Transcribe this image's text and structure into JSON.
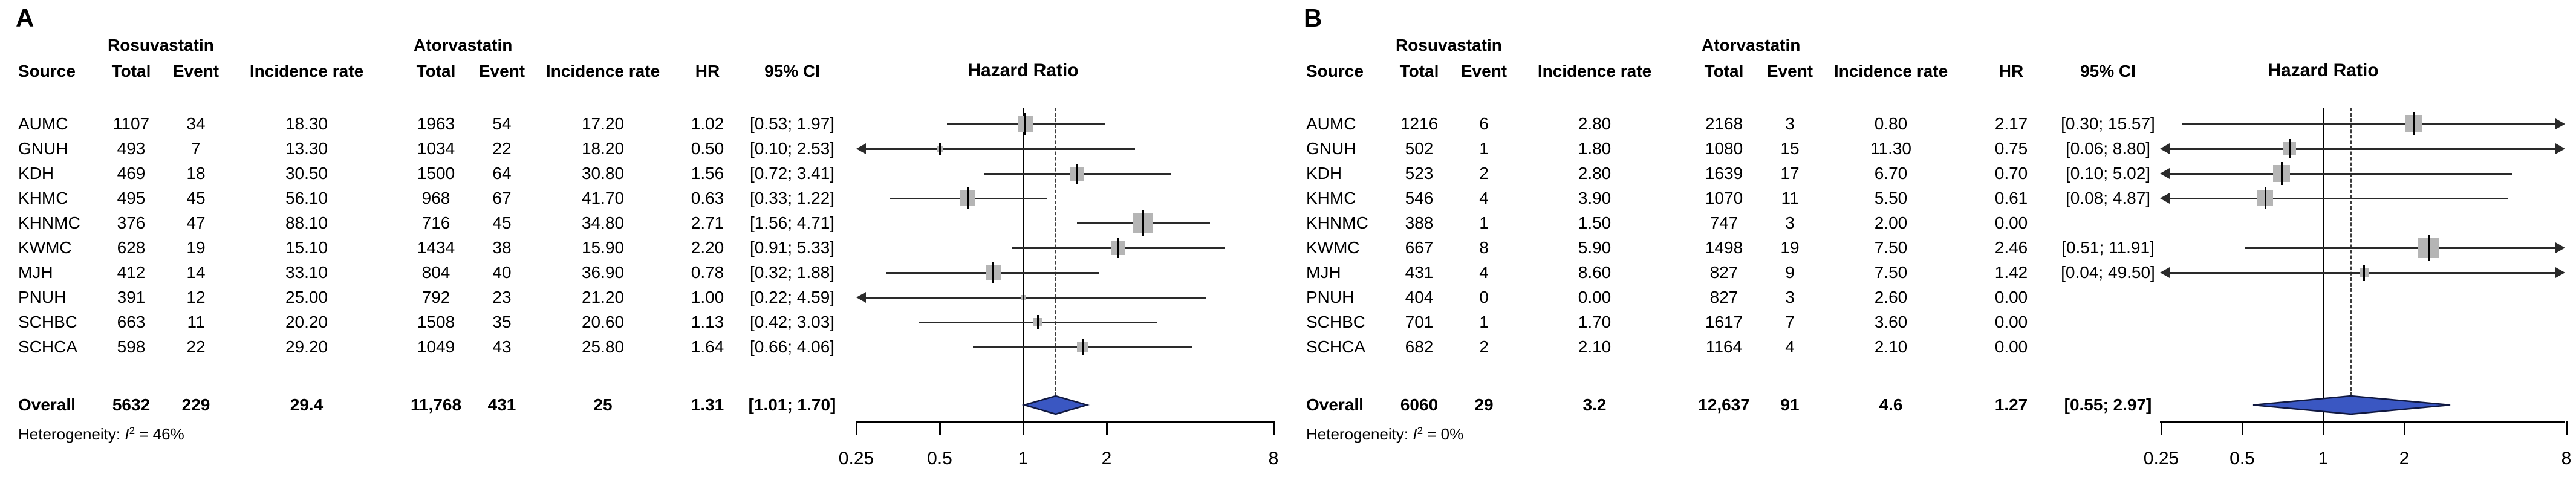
{
  "figure_colors": {
    "diamond_fill": "#3a57c2",
    "diamond_stroke": "#101840",
    "square": "#b5b5b5",
    "ci_line": "#2a2a2a",
    "axis": "#000000",
    "dashed_line": "#3c3c3c",
    "text": "#000000"
  },
  "panels": [
    {
      "label": "A",
      "group1": "Rosuvastatin",
      "group2": "Atorvastatin",
      "col_source": "Source",
      "col_total": "Total",
      "col_event": "Event",
      "col_rate": "Incidence rate",
      "col_hr": "HR",
      "col_ci": "95% CI",
      "plot_title": "Hazard Ratio",
      "overall_label": "Overall",
      "het_prefix": "Heterogeneity: ",
      "het_symbol": "I",
      "het_sup": "2",
      "het_rest": " = 46%",
      "axis_ticks": [
        "0.25",
        "0.5",
        "1",
        "2",
        "8"
      ],
      "studies": [
        {
          "source": "AUMC",
          "t1": "1107",
          "e1": "34",
          "r1": "18.30",
          "t2": "1963",
          "e2": "54",
          "r2": "17.20",
          "hr": "1.02",
          "ci": "[0.53; 1.97]",
          "hr_v": 1.02,
          "lo": 0.53,
          "hi": 1.97,
          "w": 26
        },
        {
          "source": "GNUH",
          "t1": "493",
          "e1": "7",
          "r1": "13.30",
          "t2": "1034",
          "e2": "22",
          "r2": "18.20",
          "hr": "0.50",
          "ci": "[0.10; 2.53]",
          "hr_v": 0.5,
          "lo": 0.1,
          "hi": 2.53,
          "w": 9
        },
        {
          "source": "KDH",
          "t1": "469",
          "e1": "18",
          "r1": "30.50",
          "t2": "1500",
          "e2": "64",
          "r2": "30.80",
          "hr": "1.56",
          "ci": "[0.72; 3.41]",
          "hr_v": 1.56,
          "lo": 0.72,
          "hi": 3.41,
          "w": 23
        },
        {
          "source": "KHMC",
          "t1": "495",
          "e1": "45",
          "r1": "56.10",
          "t2": "968",
          "e2": "67",
          "r2": "41.70",
          "hr": "0.63",
          "ci": "[0.33; 1.22]",
          "hr_v": 0.63,
          "lo": 0.33,
          "hi": 1.22,
          "w": 26
        },
        {
          "source": "KHNMC",
          "t1": "376",
          "e1": "47",
          "r1": "88.10",
          "t2": "716",
          "e2": "45",
          "r2": "34.80",
          "hr": "2.71",
          "ci": "[1.56; 4.71]",
          "hr_v": 2.71,
          "lo": 1.56,
          "hi": 4.71,
          "w": 34
        },
        {
          "source": "KWMC",
          "t1": "628",
          "e1": "19",
          "r1": "15.10",
          "t2": "1434",
          "e2": "38",
          "r2": "15.90",
          "hr": "2.20",
          "ci": "[0.91; 5.33]",
          "hr_v": 2.2,
          "lo": 0.91,
          "hi": 5.33,
          "w": 24
        },
        {
          "source": "MJH",
          "t1": "412",
          "e1": "14",
          "r1": "33.10",
          "t2": "804",
          "e2": "40",
          "r2": "36.90",
          "hr": "0.78",
          "ci": "[0.32; 1.88]",
          "hr_v": 0.78,
          "lo": 0.32,
          "hi": 1.88,
          "w": 24
        },
        {
          "source": "PNUH",
          "t1": "391",
          "e1": "12",
          "r1": "25.00",
          "t2": "792",
          "e2": "23",
          "r2": "21.20",
          "hr": "1.00",
          "ci": "[0.22; 4.59]",
          "hr_v": 1.0,
          "lo": 0.22,
          "hi": 4.59,
          "w": 9
        },
        {
          "source": "SCHBC",
          "t1": "663",
          "e1": "11",
          "r1": "20.20",
          "t2": "1508",
          "e2": "35",
          "r2": "20.60",
          "hr": "1.13",
          "ci": "[0.42; 3.03]",
          "hr_v": 1.13,
          "lo": 0.42,
          "hi": 3.03,
          "w": 14
        },
        {
          "source": "SCHCA",
          "t1": "598",
          "e1": "22",
          "r1": "29.20",
          "t2": "1049",
          "e2": "43",
          "r2": "25.80",
          "hr": "1.64",
          "ci": "[0.66; 4.06]",
          "hr_v": 1.64,
          "lo": 0.66,
          "hi": 4.06,
          "w": 18
        }
      ],
      "overall": {
        "t1": "5632",
        "e1": "229",
        "r1": "29.4",
        "t2": "11,768",
        "e2": "431",
        "r2": "25",
        "hr": "1.31",
        "ci": "[1.01; 1.70]",
        "hr_v": 1.31,
        "lo": 1.01,
        "hi": 1.7
      }
    },
    {
      "label": "B",
      "group1": "Rosuvastatin",
      "group2": "Atorvastatin",
      "col_source": "Source",
      "col_total": "Total",
      "col_event": "Event",
      "col_rate": "Incidence rate",
      "col_hr": "HR",
      "col_ci": "95% CI",
      "plot_title": "Hazard Ratio",
      "overall_label": "Overall",
      "het_prefix": "Heterogeneity: ",
      "het_symbol": "I",
      "het_sup": "2",
      "het_rest": " = 0%",
      "axis_ticks": [
        "0.25",
        "0.5",
        "1",
        "2",
        "8"
      ],
      "studies": [
        {
          "source": "AUMC",
          "t1": "1216",
          "e1": "6",
          "r1": "2.80",
          "t2": "2168",
          "e2": "3",
          "r2": "0.80",
          "hr": "2.17",
          "ci": "[0.30; 15.57]",
          "hr_v": 2.17,
          "lo": 0.3,
          "hi": 15.57,
          "w": 28
        },
        {
          "source": "GNUH",
          "t1": "502",
          "e1": "1",
          "r1": "1.80",
          "t2": "1080",
          "e2": "15",
          "r2": "11.30",
          "hr": "0.75",
          "ci": "[0.06; 8.80]",
          "hr_v": 0.75,
          "lo": 0.06,
          "hi": 8.8,
          "w": 22
        },
        {
          "source": "KDH",
          "t1": "523",
          "e1": "2",
          "r1": "2.80",
          "t2": "1639",
          "e2": "17",
          "r2": "6.70",
          "hr": "0.70",
          "ci": "[0.10; 5.02]",
          "hr_v": 0.7,
          "lo": 0.1,
          "hi": 5.02,
          "w": 28
        },
        {
          "source": "KHMC",
          "t1": "546",
          "e1": "4",
          "r1": "3.90",
          "t2": "1070",
          "e2": "11",
          "r2": "5.50",
          "hr": "0.61",
          "ci": "[0.08; 4.87]",
          "hr_v": 0.61,
          "lo": 0.08,
          "hi": 4.87,
          "w": 26
        },
        {
          "source": "KHNMC",
          "t1": "388",
          "e1": "1",
          "r1": "1.50",
          "t2": "747",
          "e2": "3",
          "r2": "2.00",
          "hr": "0.00",
          "ci": "",
          "hr_v": null,
          "lo": null,
          "hi": null,
          "w": 0
        },
        {
          "source": "KWMC",
          "t1": "667",
          "e1": "8",
          "r1": "5.90",
          "t2": "1498",
          "e2": "19",
          "r2": "7.50",
          "hr": "2.46",
          "ci": "[0.51; 11.91]",
          "hr_v": 2.46,
          "lo": 0.51,
          "hi": 11.91,
          "w": 34
        },
        {
          "source": "MJH",
          "t1": "431",
          "e1": "4",
          "r1": "8.60",
          "t2": "827",
          "e2": "9",
          "r2": "7.50",
          "hr": "1.42",
          "ci": "[0.04; 49.50]",
          "hr_v": 1.42,
          "lo": 0.04,
          "hi": 49.5,
          "w": 16
        },
        {
          "source": "PNUH",
          "t1": "404",
          "e1": "0",
          "r1": "0.00",
          "t2": "827",
          "e2": "3",
          "r2": "2.60",
          "hr": "0.00",
          "ci": "",
          "hr_v": null,
          "lo": null,
          "hi": null,
          "w": 0
        },
        {
          "source": "SCHBC",
          "t1": "701",
          "e1": "1",
          "r1": "1.70",
          "t2": "1617",
          "e2": "7",
          "r2": "3.60",
          "hr": "0.00",
          "ci": "",
          "hr_v": null,
          "lo": null,
          "hi": null,
          "w": 0
        },
        {
          "source": "SCHCA",
          "t1": "682",
          "e1": "2",
          "r1": "2.10",
          "t2": "1164",
          "e2": "4",
          "r2": "2.10",
          "hr": "0.00",
          "ci": "",
          "hr_v": null,
          "lo": null,
          "hi": null,
          "w": 0
        }
      ],
      "overall": {
        "t1": "6060",
        "e1": "29",
        "r1": "3.2",
        "t2": "12,637",
        "e2": "91",
        "r2": "4.6",
        "hr": "1.27",
        "ci": "[0.55; 2.97]",
        "hr_v": 1.27,
        "lo": 0.55,
        "hi": 2.97
      }
    }
  ],
  "chart_data": [
    {
      "type": "scatter",
      "subtype": "forest-plot",
      "panel": "A",
      "title": "Hazard Ratio",
      "xlabel": "",
      "x_axis": {
        "scale": "log",
        "ticks": [
          0.25,
          0.5,
          1,
          2,
          8
        ],
        "range": [
          0.25,
          8
        ]
      },
      "reference_line": 1,
      "overall_dashed_line": 1.31,
      "groups": [
        "Rosuvastatin",
        "Atorvastatin"
      ],
      "studies": [
        {
          "name": "AUMC",
          "ros_total": 1107,
          "ros_event": 34,
          "ros_rate": 18.3,
          "ato_total": 1963,
          "ato_event": 54,
          "ato_rate": 17.2,
          "hr": 1.02,
          "ci": [
            0.53,
            1.97
          ]
        },
        {
          "name": "GNUH",
          "ros_total": 493,
          "ros_event": 7,
          "ros_rate": 13.3,
          "ato_total": 1034,
          "ato_event": 22,
          "ato_rate": 18.2,
          "hr": 0.5,
          "ci": [
            0.1,
            2.53
          ]
        },
        {
          "name": "KDH",
          "ros_total": 469,
          "ros_event": 18,
          "ros_rate": 30.5,
          "ato_total": 1500,
          "ato_event": 64,
          "ato_rate": 30.8,
          "hr": 1.56,
          "ci": [
            0.72,
            3.41
          ]
        },
        {
          "name": "KHMC",
          "ros_total": 495,
          "ros_event": 45,
          "ros_rate": 56.1,
          "ato_total": 968,
          "ato_event": 67,
          "ato_rate": 41.7,
          "hr": 0.63,
          "ci": [
            0.33,
            1.22
          ]
        },
        {
          "name": "KHNMC",
          "ros_total": 376,
          "ros_event": 47,
          "ros_rate": 88.1,
          "ato_total": 716,
          "ato_event": 45,
          "ato_rate": 34.8,
          "hr": 2.71,
          "ci": [
            1.56,
            4.71
          ]
        },
        {
          "name": "KWMC",
          "ros_total": 628,
          "ros_event": 19,
          "ros_rate": 15.1,
          "ato_total": 1434,
          "ato_event": 38,
          "ato_rate": 15.9,
          "hr": 2.2,
          "ci": [
            0.91,
            5.33
          ]
        },
        {
          "name": "MJH",
          "ros_total": 412,
          "ros_event": 14,
          "ros_rate": 33.1,
          "ato_total": 804,
          "ato_event": 40,
          "ato_rate": 36.9,
          "hr": 0.78,
          "ci": [
            0.32,
            1.88
          ]
        },
        {
          "name": "PNUH",
          "ros_total": 391,
          "ros_event": 12,
          "ros_rate": 25.0,
          "ato_total": 792,
          "ato_event": 23,
          "ato_rate": 21.2,
          "hr": 1.0,
          "ci": [
            0.22,
            4.59
          ]
        },
        {
          "name": "SCHBC",
          "ros_total": 663,
          "ros_event": 11,
          "ros_rate": 20.2,
          "ato_total": 1508,
          "ato_event": 35,
          "ato_rate": 20.6,
          "hr": 1.13,
          "ci": [
            0.42,
            3.03
          ]
        },
        {
          "name": "SCHCA",
          "ros_total": 598,
          "ros_event": 22,
          "ros_rate": 29.2,
          "ato_total": 1049,
          "ato_event": 43,
          "ato_rate": 25.8,
          "hr": 1.64,
          "ci": [
            0.66,
            4.06
          ]
        }
      ],
      "overall": {
        "ros_total": 5632,
        "ros_event": 229,
        "ros_rate": 29.4,
        "ato_total": 11768,
        "ato_event": 431,
        "ato_rate": 25,
        "hr": 1.31,
        "ci": [
          1.01,
          1.7
        ]
      },
      "heterogeneity_I2": "46%"
    },
    {
      "type": "scatter",
      "subtype": "forest-plot",
      "panel": "B",
      "title": "Hazard Ratio",
      "xlabel": "",
      "x_axis": {
        "scale": "log",
        "ticks": [
          0.25,
          0.5,
          1,
          2,
          8
        ],
        "range": [
          0.25,
          8
        ]
      },
      "reference_line": 1,
      "overall_dashed_line": 1.27,
      "groups": [
        "Rosuvastatin",
        "Atorvastatin"
      ],
      "studies": [
        {
          "name": "AUMC",
          "ros_total": 1216,
          "ros_event": 6,
          "ros_rate": 2.8,
          "ato_total": 2168,
          "ato_event": 3,
          "ato_rate": 0.8,
          "hr": 2.17,
          "ci": [
            0.3,
            15.57
          ]
        },
        {
          "name": "GNUH",
          "ros_total": 502,
          "ros_event": 1,
          "ros_rate": 1.8,
          "ato_total": 1080,
          "ato_event": 15,
          "ato_rate": 11.3,
          "hr": 0.75,
          "ci": [
            0.06,
            8.8
          ]
        },
        {
          "name": "KDH",
          "ros_total": 523,
          "ros_event": 2,
          "ros_rate": 2.8,
          "ato_total": 1639,
          "ato_event": 17,
          "ato_rate": 6.7,
          "hr": 0.7,
          "ci": [
            0.1,
            5.02
          ]
        },
        {
          "name": "KHMC",
          "ros_total": 546,
          "ros_event": 4,
          "ros_rate": 3.9,
          "ato_total": 1070,
          "ato_event": 11,
          "ato_rate": 5.5,
          "hr": 0.61,
          "ci": [
            0.08,
            4.87
          ]
        },
        {
          "name": "KHNMC",
          "ros_total": 388,
          "ros_event": 1,
          "ros_rate": 1.5,
          "ato_total": 747,
          "ato_event": 3,
          "ato_rate": 2.0,
          "hr": 0.0,
          "ci": null
        },
        {
          "name": "KWMC",
          "ros_total": 667,
          "ros_event": 8,
          "ros_rate": 5.9,
          "ato_total": 1498,
          "ato_event": 19,
          "ato_rate": 7.5,
          "hr": 2.46,
          "ci": [
            0.51,
            11.91
          ]
        },
        {
          "name": "MJH",
          "ros_total": 431,
          "ros_event": 4,
          "ros_rate": 8.6,
          "ato_total": 827,
          "ato_event": 9,
          "ato_rate": 7.5,
          "hr": 1.42,
          "ci": [
            0.04,
            49.5
          ]
        },
        {
          "name": "PNUH",
          "ros_total": 404,
          "ros_event": 0,
          "ros_rate": 0.0,
          "ato_total": 827,
          "ato_event": 3,
          "ato_rate": 2.6,
          "hr": 0.0,
          "ci": null
        },
        {
          "name": "SCHBC",
          "ros_total": 701,
          "ros_event": 1,
          "ros_rate": 1.7,
          "ato_total": 1617,
          "ato_event": 7,
          "ato_rate": 3.6,
          "hr": 0.0,
          "ci": null
        },
        {
          "name": "SCHCA",
          "ros_total": 682,
          "ros_event": 2,
          "ros_rate": 2.1,
          "ato_total": 1164,
          "ato_event": 4,
          "ato_rate": 2.1,
          "hr": 0.0,
          "ci": null
        }
      ],
      "overall": {
        "ros_total": 6060,
        "ros_event": 29,
        "ros_rate": 3.2,
        "ato_total": 12637,
        "ato_event": 91,
        "ato_rate": 4.6,
        "hr": 1.27,
        "ci": [
          0.55,
          2.97
        ]
      },
      "heterogeneity_I2": "0%"
    }
  ]
}
